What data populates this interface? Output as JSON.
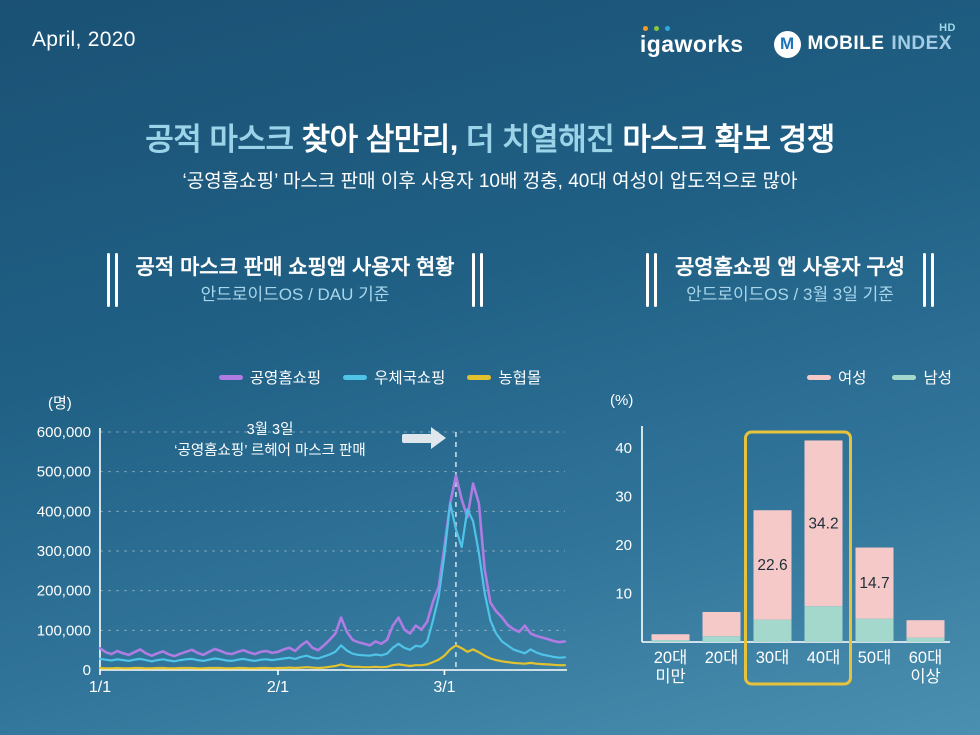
{
  "meta": {
    "date": "April, 2020"
  },
  "logos": {
    "igaworks": "igaworks",
    "igaworks_dot_colors": [
      "#f59b22",
      "#8cc63f",
      "#29abe2"
    ],
    "mobileindex": {
      "m": "M",
      "mobile": "MOBILE",
      "index": "INDEX",
      "hd": "HD"
    }
  },
  "title": {
    "segments": [
      {
        "text": "공적 마스크 ",
        "accent": true
      },
      {
        "text": "찾아 삼만리, ",
        "accent": false
      },
      {
        "text": "더 치열해진 ",
        "accent": true
      },
      {
        "text": "마스크 확보 경쟁",
        "accent": false
      }
    ],
    "subtitle": "‘공영홈쇼핑’ 마스크 판매 이후 사용자 10배 껑충, 40대 여성이 압도적으로 많아",
    "accent_color": "#9bd3e8"
  },
  "left_section": {
    "heading": "공적 마스크 판매 쇼핑앱 사용자 현황",
    "subheading": "안드로이드OS / DAU 기준",
    "unit_label": "(명)",
    "annotation": {
      "line1": "3월 3일",
      "line2": "‘공영홈쇼핑’ 르헤어 마스크 판매"
    },
    "legend": [
      {
        "label": "공영홈쇼핑",
        "color": "#ae7ce3"
      },
      {
        "label": "우체국쇼핑",
        "color": "#4fc3e8"
      },
      {
        "label": "농협몰",
        "color": "#e2c22e"
      }
    ]
  },
  "right_section": {
    "heading": "공영홈쇼핑 앱 사용자 구성",
    "subheading": "안드로이드OS / 3월 3일 기준",
    "unit_label": "(%)",
    "legend": [
      {
        "label": "여성",
        "color": "#f6c9c9"
      },
      {
        "label": "남성",
        "color": "#a5d8cd"
      }
    ]
  },
  "chart_data": [
    {
      "type": "line",
      "title": "공적 마스크 판매 쇼핑앱 사용자 현황 (안드로이드OS / DAU 기준)",
      "ylabel": "(명)",
      "ylim": [
        0,
        600000
      ],
      "yticks": [
        0,
        100000,
        200000,
        300000,
        400000,
        500000,
        600000
      ],
      "x_unit": "days_from_2020-01-01",
      "xticks": [
        {
          "day": 0,
          "label": "1/1"
        },
        {
          "day": 31,
          "label": "2/1"
        },
        {
          "day": 60,
          "label": "3/1"
        }
      ],
      "event_line": {
        "day": 62,
        "label": "3월 3일 ‘공영홈쇼핑’ 르헤어 마스크 판매"
      },
      "grid": "dashed-horizontal",
      "legend_position": "top",
      "series": [
        {
          "name": "공영홈쇼핑",
          "color": "#ae7ce3",
          "values": [
            55000,
            45000,
            40000,
            48000,
            42000,
            38000,
            45000,
            52000,
            42000,
            36000,
            42000,
            47000,
            39000,
            35000,
            41000,
            46000,
            51000,
            43000,
            38000,
            46000,
            53000,
            48000,
            42000,
            40000,
            46000,
            50000,
            44000,
            40000,
            46000,
            48000,
            43000,
            46000,
            52000,
            56000,
            48000,
            62000,
            72000,
            56000,
            50000,
            62000,
            76000,
            92000,
            132000,
            96000,
            76000,
            70000,
            66000,
            62000,
            72000,
            66000,
            76000,
            112000,
            132000,
            102000,
            92000,
            112000,
            102000,
            122000,
            172000,
            210000,
            310000,
            420000,
            490000,
            430000,
            385000,
            470000,
            420000,
            255000,
            170000,
            148000,
            133000,
            114000,
            103000,
            96000,
            112000,
            92000,
            86000,
            82000,
            78000,
            73000,
            70000,
            72000
          ]
        },
        {
          "name": "우체국쇼핑",
          "color": "#4fc3e8",
          "values": [
            28000,
            26000,
            24000,
            27000,
            25000,
            23000,
            26000,
            28000,
            25000,
            22000,
            25000,
            27000,
            24000,
            22000,
            25000,
            27000,
            28000,
            25000,
            23000,
            26000,
            29000,
            27000,
            24000,
            23000,
            26000,
            28000,
            25000,
            23000,
            26000,
            27000,
            25000,
            27000,
            29000,
            31000,
            28000,
            33000,
            36000,
            31000,
            29000,
            34000,
            39000,
            46000,
            62000,
            49000,
            41000,
            38000,
            37000,
            36000,
            39000,
            37000,
            41000,
            56000,
            66000,
            56000,
            51000,
            61000,
            59000,
            72000,
            125000,
            185000,
            290000,
            420000,
            355000,
            310000,
            405000,
            375000,
            295000,
            195000,
            125000,
            92000,
            72000,
            62000,
            52000,
            47000,
            42000,
            52000,
            44000,
            39000,
            36000,
            33000,
            31000,
            32000
          ]
        },
        {
          "name": "농협몰",
          "color": "#e2c22e",
          "values": [
            5000,
            4000,
            4000,
            5000,
            4000,
            4000,
            5000,
            5000,
            4000,
            4000,
            5000,
            5000,
            4000,
            4000,
            5000,
            5000,
            5000,
            4000,
            4000,
            5000,
            5000,
            5000,
            4000,
            4000,
            5000,
            5000,
            4000,
            4000,
            5000,
            5000,
            4000,
            5000,
            5000,
            6000,
            5000,
            6000,
            7000,
            6000,
            5000,
            6000,
            8000,
            10000,
            14000,
            10000,
            8000,
            8000,
            7000,
            7000,
            8000,
            7000,
            8000,
            12000,
            14000,
            12000,
            10000,
            12000,
            12000,
            14000,
            20000,
            26000,
            36000,
            52000,
            62000,
            55000,
            46000,
            52000,
            45000,
            36000,
            29000,
            25000,
            22000,
            20000,
            18000,
            17000,
            16000,
            18000,
            16000,
            15000,
            14000,
            13000,
            12000,
            12000
          ]
        }
      ]
    },
    {
      "type": "bar",
      "stacked": true,
      "title": "공영홈쇼핑 앱 사용자 구성 (안드로이드OS / 3월 3일 기준)",
      "ylabel": "(%)",
      "ylim": [
        0,
        45
      ],
      "yticks": [
        10,
        20,
        30,
        40
      ],
      "categories": [
        "20대 미만",
        "20대",
        "30대",
        "40대",
        "50대",
        "60대 이상"
      ],
      "series": [
        {
          "name": "남성",
          "color": "#a5d8cd",
          "values": [
            0.4,
            1.2,
            4.6,
            7.4,
            4.8,
            0.9
          ]
        },
        {
          "name": "여성",
          "color": "#f6c9c9",
          "values": [
            1.2,
            5.0,
            22.6,
            34.2,
            14.7,
            3.6
          ]
        }
      ],
      "value_labels": [
        null,
        null,
        "22.6",
        "34.2",
        "14.7",
        null
      ],
      "highlight": {
        "categories": [
          "30대",
          "40대"
        ],
        "box_color": "#e7c33c"
      }
    }
  ]
}
